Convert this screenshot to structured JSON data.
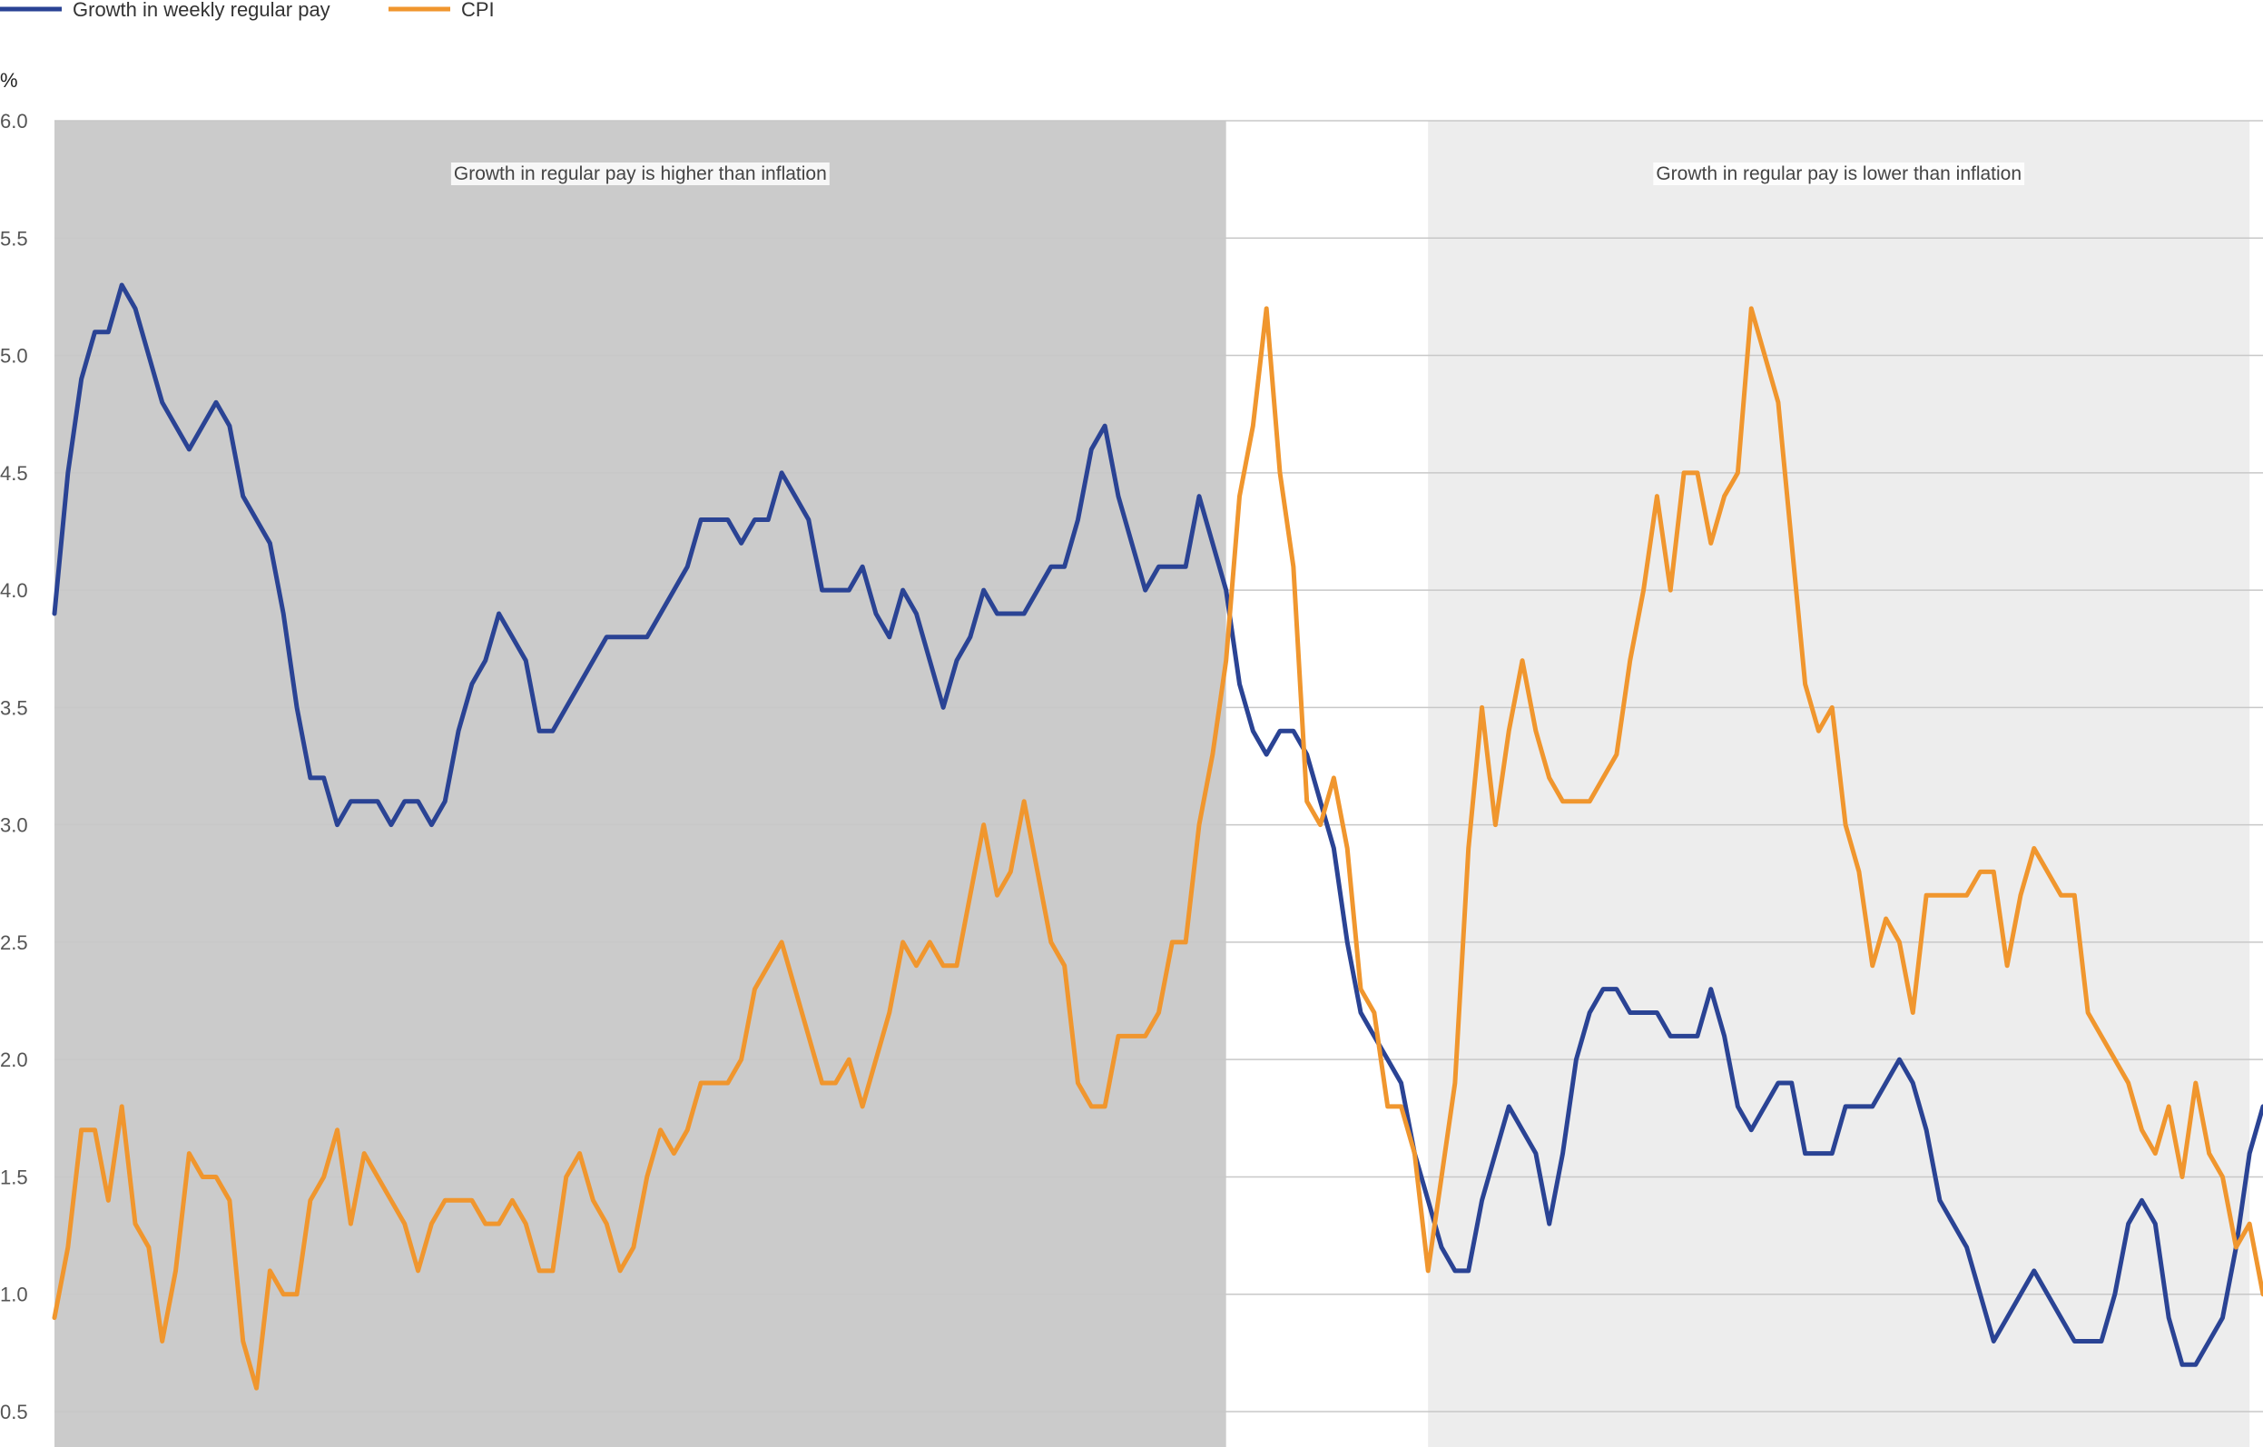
{
  "chart_data": {
    "type": "line",
    "ylabel": "%",
    "ylim": [
      0.5,
      6.0
    ],
    "yticks": [
      "6.0",
      "5.5",
      "5.0",
      "4.5",
      "4.0",
      "3.5",
      "3.0",
      "2.5",
      "2.0",
      "1.5",
      "1.0",
      "0.5"
    ],
    "grid": true,
    "legend_position": "top-left",
    "colors": {
      "pay": "#2a4394",
      "cpi": "#f0962e",
      "band_higher": "#cbcbcb",
      "band_lower": "#ededed",
      "grid": "#c8c8c8"
    },
    "annotations": [
      {
        "text": "Growth in regular pay is higher than inflation",
        "from_index": 0,
        "to_index": 87
      },
      {
        "text": "Growth in regular pay is lower than inflation",
        "from_index": 102,
        "to_index": 163
      }
    ],
    "series": [
      {
        "name": "Growth in weekly regular pay",
        "values": [
          3.9,
          4.5,
          4.9,
          5.1,
          5.1,
          5.3,
          5.2,
          5.0,
          4.8,
          4.7,
          4.6,
          4.7,
          4.8,
          4.7,
          4.4,
          4.3,
          4.2,
          3.9,
          3.5,
          3.2,
          3.2,
          3.0,
          3.1,
          3.1,
          3.1,
          3.0,
          3.1,
          3.1,
          3.0,
          3.1,
          3.4,
          3.6,
          3.7,
          3.9,
          3.8,
          3.7,
          3.4,
          3.4,
          3.5,
          3.6,
          3.7,
          3.8,
          3.8,
          3.8,
          3.8,
          3.9,
          4.0,
          4.1,
          4.3,
          4.3,
          4.3,
          4.2,
          4.3,
          4.3,
          4.5,
          4.4,
          4.3,
          4.0,
          4.0,
          4.0,
          4.1,
          3.9,
          3.8,
          4.0,
          3.9,
          3.7,
          3.5,
          3.7,
          3.8,
          4.0,
          3.9,
          3.9,
          3.9,
          4.0,
          4.1,
          4.1,
          4.3,
          4.6,
          4.7,
          4.4,
          4.2,
          4.0,
          4.1,
          4.1,
          4.1,
          4.4,
          4.2,
          4.0,
          3.6,
          3.4,
          3.3,
          3.4,
          3.4,
          3.3,
          3.1,
          2.9,
          2.5,
          2.2,
          2.1,
          2.0,
          1.9,
          1.6,
          1.4,
          1.2,
          1.1,
          1.1,
          1.4,
          1.6,
          1.8,
          1.7,
          1.6,
          1.3,
          1.6,
          2.0,
          2.2,
          2.3,
          2.3,
          2.2,
          2.2,
          2.2,
          2.1,
          2.1,
          2.1,
          2.3,
          2.1,
          1.8,
          1.7,
          1.8,
          1.9,
          1.9,
          1.6,
          1.6,
          1.6,
          1.8,
          1.8,
          1.8,
          1.9,
          2.0,
          1.9,
          1.7,
          1.4,
          1.3,
          1.2,
          1.0,
          0.8,
          0.9,
          1.0,
          1.1,
          1.0,
          0.9,
          0.8,
          0.8,
          0.8,
          1.0,
          1.3,
          1.4,
          1.3,
          0.9,
          0.7,
          0.7,
          0.8,
          0.9,
          1.2,
          1.6,
          1.8
        ]
      },
      {
        "name": "CPI",
        "values": [
          0.9,
          1.2,
          1.7,
          1.7,
          1.4,
          1.8,
          1.3,
          1.2,
          0.8,
          1.1,
          1.6,
          1.5,
          1.5,
          1.4,
          0.8,
          0.6,
          1.1,
          1.0,
          1.0,
          1.4,
          1.5,
          1.7,
          1.3,
          1.6,
          1.5,
          1.4,
          1.3,
          1.1,
          1.3,
          1.4,
          1.4,
          1.4,
          1.3,
          1.3,
          1.4,
          1.3,
          1.1,
          1.1,
          1.5,
          1.6,
          1.4,
          1.3,
          1.1,
          1.2,
          1.5,
          1.7,
          1.6,
          1.7,
          1.9,
          1.9,
          1.9,
          2.0,
          2.3,
          2.4,
          2.5,
          2.3,
          2.1,
          1.9,
          1.9,
          2.0,
          1.8,
          2.0,
          2.2,
          2.5,
          2.4,
          2.5,
          2.4,
          2.4,
          2.7,
          3.0,
          2.7,
          2.8,
          3.1,
          2.8,
          2.5,
          2.4,
          1.9,
          1.8,
          1.8,
          2.1,
          2.1,
          2.1,
          2.2,
          2.5,
          2.5,
          3.0,
          3.3,
          3.7,
          4.4,
          4.7,
          5.2,
          4.5,
          4.1,
          3.1,
          3.0,
          3.2,
          2.9,
          2.3,
          2.2,
          1.8,
          1.8,
          1.6,
          1.1,
          1.5,
          1.9,
          2.9,
          3.5,
          3.0,
          3.4,
          3.7,
          3.4,
          3.2,
          3.1,
          3.1,
          3.1,
          3.2,
          3.3,
          3.7,
          4.0,
          4.4,
          4.0,
          4.5,
          4.5,
          4.2,
          4.4,
          4.5,
          5.2,
          5.0,
          4.8,
          4.2,
          3.6,
          3.4,
          3.5,
          3.0,
          2.8,
          2.4,
          2.6,
          2.5,
          2.2,
          2.7,
          2.7,
          2.7,
          2.7,
          2.8,
          2.8,
          2.4,
          2.7,
          2.9,
          2.8,
          2.7,
          2.7,
          2.2,
          2.1,
          2.0,
          1.9,
          1.7,
          1.6,
          1.8,
          1.5,
          1.9,
          1.6,
          1.5,
          1.2,
          1.3,
          1.0
        ]
      }
    ]
  }
}
